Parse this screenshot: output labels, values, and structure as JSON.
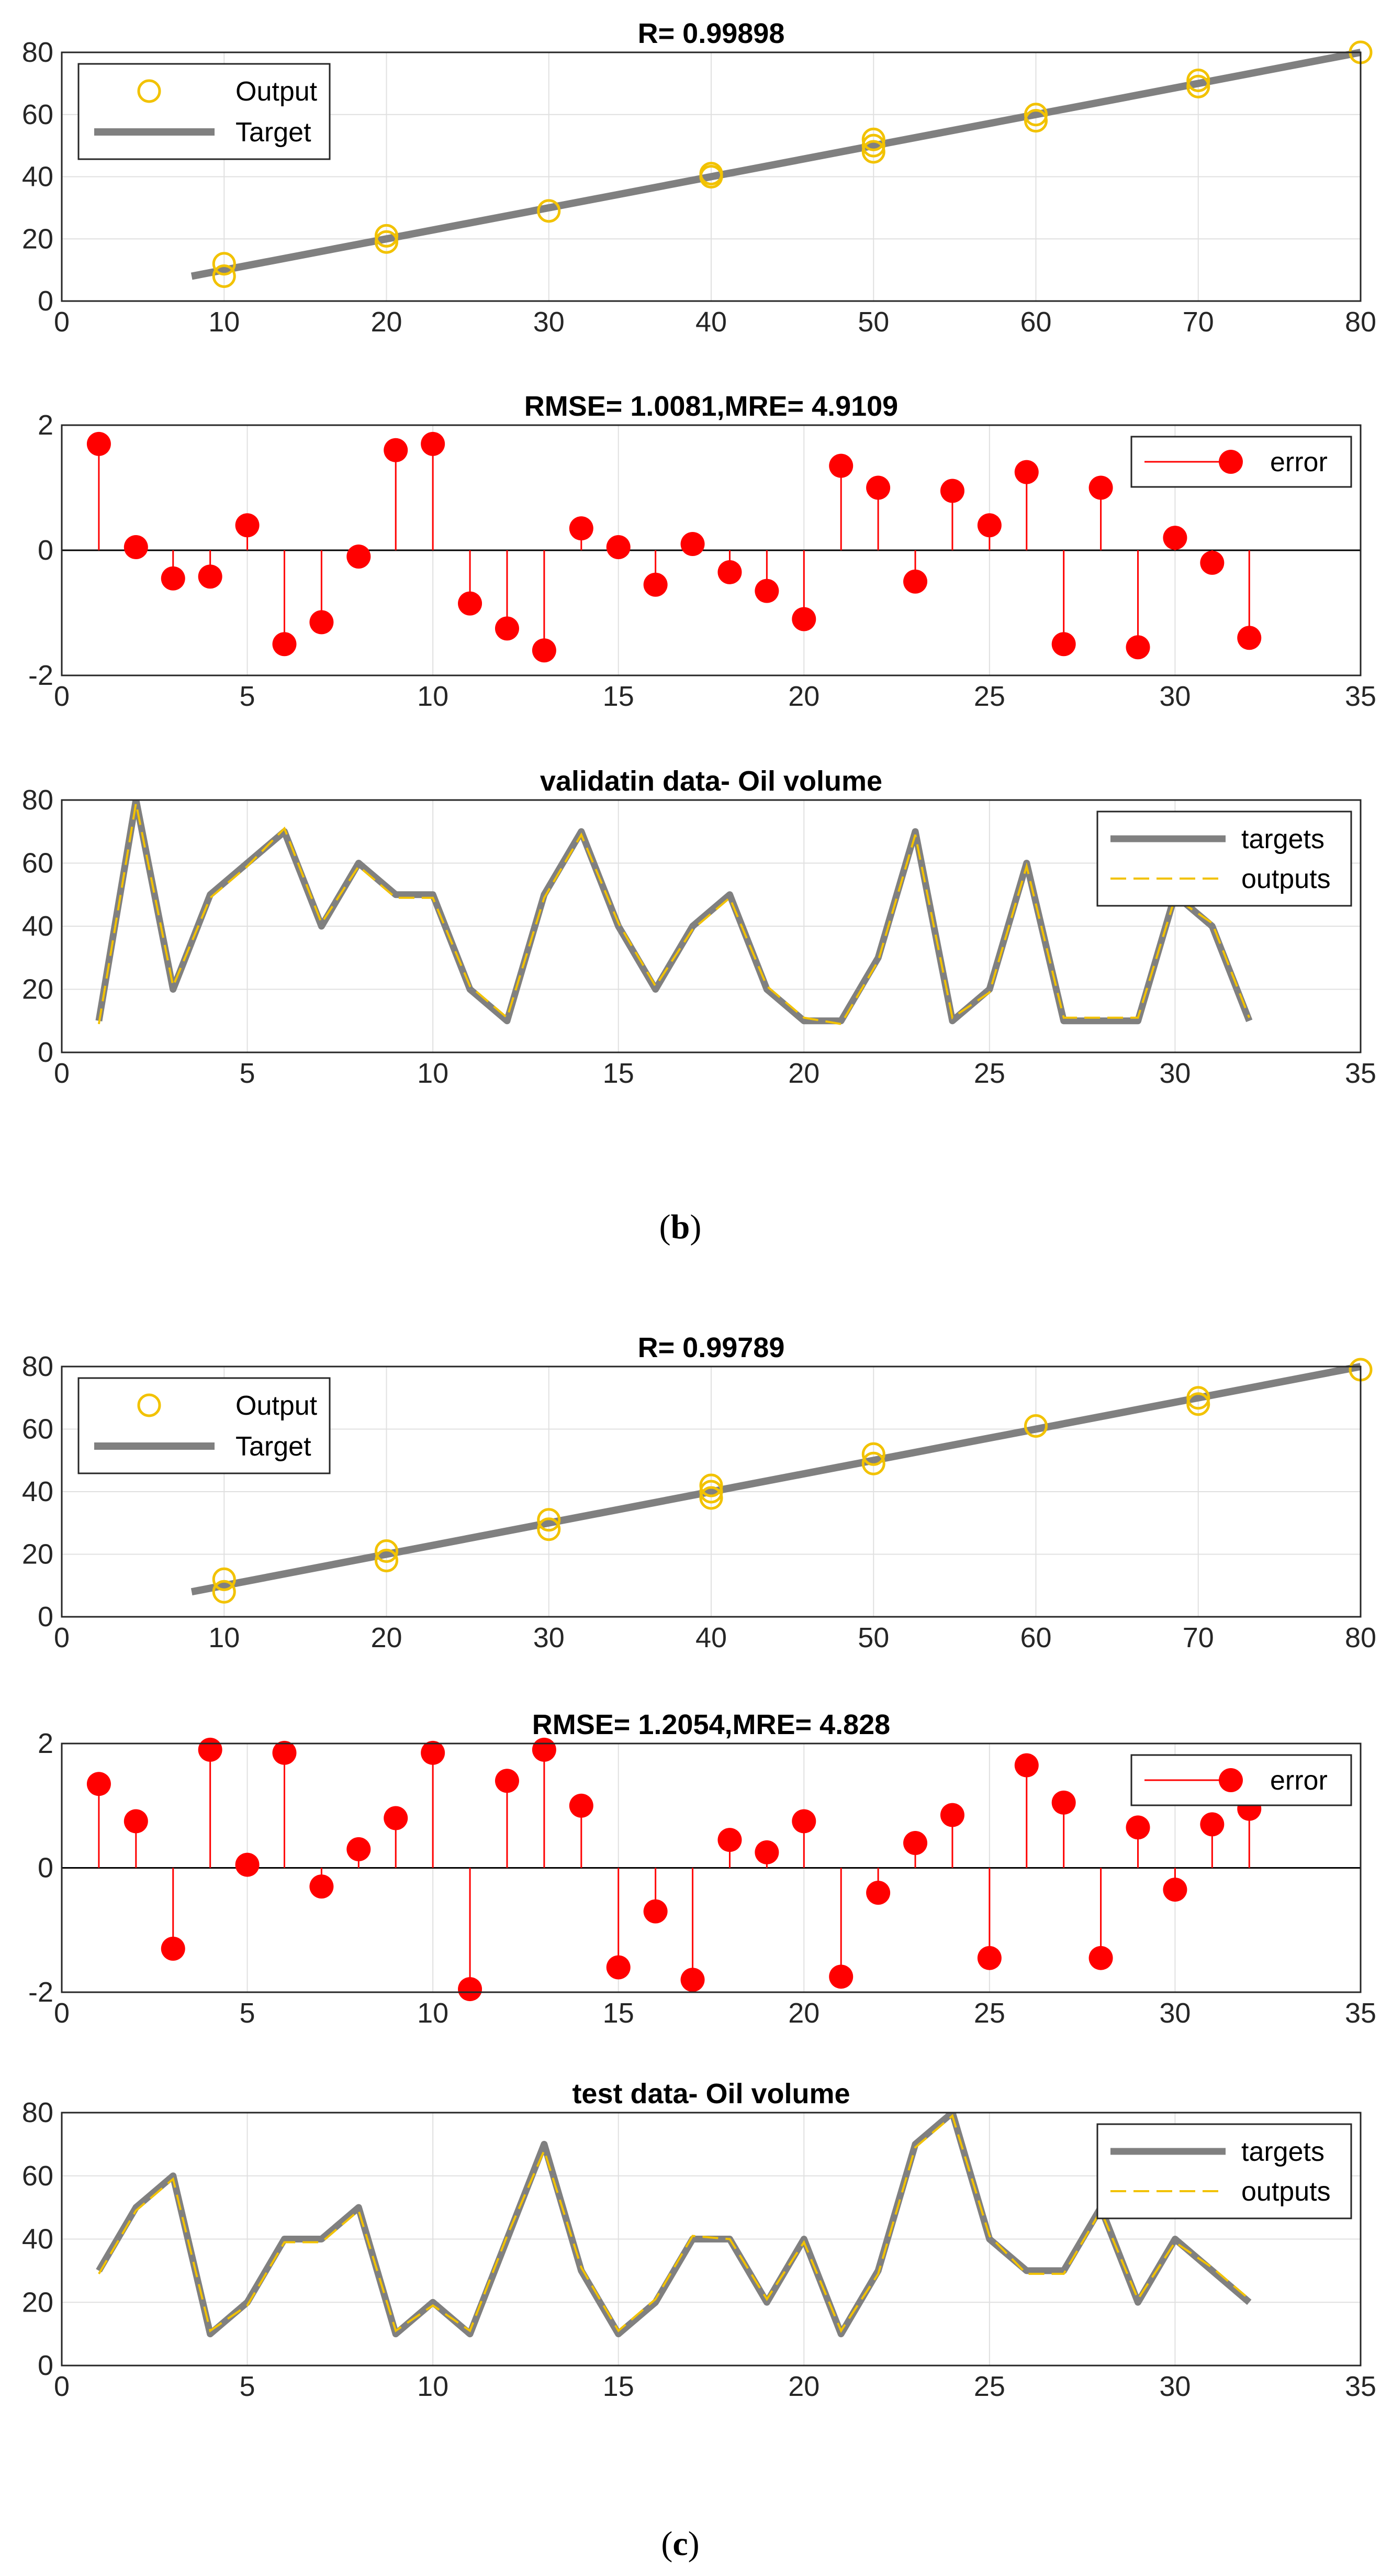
{
  "colors": {
    "target_line": "#808080",
    "output_marker": "#f2c200",
    "output_dash": "#f2c200",
    "error_stem": "#ff0000",
    "grid": "#e0e0e0",
    "axis": "#262626"
  },
  "captions": {
    "b": "b",
    "c": "c"
  },
  "chart_data": [
    {
      "id": "b_regression",
      "type": "scatter",
      "title": "R= 0.99898",
      "xlim": [
        0,
        80
      ],
      "ylim": [
        0,
        80
      ],
      "xticks": [
        0,
        10,
        20,
        30,
        40,
        50,
        60,
        70,
        80
      ],
      "yticks": [
        0,
        20,
        40,
        60,
        80
      ],
      "legend_position": "top-left",
      "legend": [
        "Output",
        "Target"
      ],
      "target_line": [
        [
          8,
          8
        ],
        [
          80,
          80
        ]
      ],
      "points": [
        [
          10,
          8
        ],
        [
          10,
          12
        ],
        [
          20,
          19
        ],
        [
          20,
          21
        ],
        [
          30,
          29
        ],
        [
          40,
          40
        ],
        [
          40,
          41
        ],
        [
          50,
          48
        ],
        [
          50,
          50
        ],
        [
          50,
          52
        ],
        [
          60,
          58
        ],
        [
          60,
          60
        ],
        [
          70,
          69
        ],
        [
          70,
          71
        ],
        [
          80,
          80
        ]
      ]
    },
    {
      "id": "b_error",
      "type": "stem",
      "title": "RMSE= 1.0081,MRE= 4.9109",
      "xlim": [
        0,
        35
      ],
      "ylim": [
        -2,
        2
      ],
      "xticks": [
        0,
        5,
        10,
        15,
        20,
        25,
        30,
        35
      ],
      "yticks": [
        -2,
        0,
        2
      ],
      "legend_position": "top-right",
      "legend": [
        "error"
      ],
      "x": [
        1,
        2,
        3,
        4,
        5,
        6,
        7,
        8,
        9,
        10,
        11,
        12,
        13,
        14,
        15,
        16,
        17,
        18,
        19,
        20,
        21,
        22,
        23,
        24,
        25,
        26,
        27,
        28,
        29,
        30,
        31,
        32
      ],
      "values": [
        1.7,
        0.05,
        -0.45,
        -0.42,
        0.4,
        -1.5,
        -1.15,
        -0.1,
        1.6,
        1.7,
        -0.85,
        -1.25,
        -1.6,
        0.35,
        0.05,
        -0.55,
        0.1,
        -0.35,
        -0.65,
        -1.1,
        1.35,
        1.0,
        -0.5,
        0.95,
        0.4,
        1.25,
        -1.5,
        1.0,
        -1.55,
        0.2,
        -0.2,
        -1.4
      ]
    },
    {
      "id": "b_series",
      "type": "line",
      "title": "validatin data- Oil volume",
      "xlim": [
        0,
        35
      ],
      "ylim": [
        0,
        80
      ],
      "xticks": [
        0,
        5,
        10,
        15,
        20,
        25,
        30,
        35
      ],
      "yticks": [
        0,
        20,
        40,
        60,
        80
      ],
      "legend_position": "top-right",
      "x": [
        1,
        2,
        3,
        4,
        5,
        6,
        7,
        8,
        9,
        10,
        11,
        12,
        13,
        14,
        15,
        16,
        17,
        18,
        19,
        20,
        21,
        22,
        23,
        24,
        25,
        26,
        27,
        28,
        29,
        30,
        31,
        32
      ],
      "series": [
        {
          "name": "targets",
          "values": [
            10,
            80,
            20,
            50,
            60,
            70,
            40,
            60,
            50,
            50,
            20,
            10,
            50,
            70,
            40,
            20,
            40,
            50,
            20,
            10,
            10,
            30,
            70,
            10,
            20,
            60,
            10,
            10,
            10,
            50,
            40,
            10
          ]
        },
        {
          "name": "outputs",
          "values": [
            9,
            79,
            21,
            49,
            59,
            71,
            41,
            59,
            49,
            49,
            21,
            11,
            49,
            69,
            41,
            21,
            39,
            49,
            21,
            11,
            9,
            29,
            69,
            11,
            19,
            59,
            11,
            11,
            11,
            49,
            41,
            11
          ]
        }
      ]
    },
    {
      "id": "c_regression",
      "type": "scatter",
      "title": "R= 0.99789",
      "xlim": [
        0,
        80
      ],
      "ylim": [
        0,
        80
      ],
      "xticks": [
        0,
        10,
        20,
        30,
        40,
        50,
        60,
        70,
        80
      ],
      "yticks": [
        0,
        20,
        40,
        60,
        80
      ],
      "legend_position": "top-left",
      "legend": [
        "Output",
        "Target"
      ],
      "target_line": [
        [
          8,
          8
        ],
        [
          80,
          80
        ]
      ],
      "points": [
        [
          10,
          8
        ],
        [
          10,
          12
        ],
        [
          20,
          18
        ],
        [
          20,
          21
        ],
        [
          30,
          28
        ],
        [
          30,
          31
        ],
        [
          40,
          38
        ],
        [
          40,
          40
        ],
        [
          40,
          42
        ],
        [
          50,
          49
        ],
        [
          50,
          52
        ],
        [
          60,
          61
        ],
        [
          70,
          68
        ],
        [
          70,
          70
        ],
        [
          80,
          79
        ]
      ]
    },
    {
      "id": "c_error",
      "type": "stem",
      "title": "RMSE= 1.2054,MRE= 4.828",
      "xlim": [
        0,
        35
      ],
      "ylim": [
        -2,
        2
      ],
      "xticks": [
        0,
        5,
        10,
        15,
        20,
        25,
        30,
        35
      ],
      "yticks": [
        -2,
        0,
        2
      ],
      "legend_position": "top-right",
      "legend": [
        "error"
      ],
      "x": [
        1,
        2,
        3,
        4,
        5,
        6,
        7,
        8,
        9,
        10,
        11,
        12,
        13,
        14,
        15,
        16,
        17,
        18,
        19,
        20,
        21,
        22,
        23,
        24,
        25,
        26,
        27,
        28,
        29,
        30,
        31,
        32
      ],
      "values": [
        1.35,
        0.75,
        -1.3,
        1.9,
        0.05,
        1.85,
        -0.3,
        0.3,
        0.8,
        1.85,
        -1.95,
        1.4,
        1.9,
        1.0,
        -1.6,
        -0.7,
        -1.8,
        0.45,
        0.25,
        0.75,
        -1.75,
        -0.4,
        0.4,
        0.85,
        -1.45,
        1.65,
        1.05,
        -1.45,
        0.65,
        -0.35,
        0.7,
        0.95
      ]
    },
    {
      "id": "c_series",
      "type": "line",
      "title": "test data- Oil volume",
      "xlim": [
        0,
        35
      ],
      "ylim": [
        0,
        80
      ],
      "xticks": [
        0,
        5,
        10,
        15,
        20,
        25,
        30,
        35
      ],
      "yticks": [
        0,
        20,
        40,
        60,
        80
      ],
      "legend_position": "top-right",
      "x": [
        1,
        2,
        3,
        4,
        5,
        6,
        7,
        8,
        9,
        10,
        11,
        12,
        13,
        14,
        15,
        16,
        17,
        18,
        19,
        20,
        21,
        22,
        23,
        24,
        25,
        26,
        27,
        28,
        29,
        30,
        31,
        32
      ],
      "series": [
        {
          "name": "targets",
          "values": [
            30,
            50,
            60,
            10,
            20,
            40,
            40,
            50,
            10,
            20,
            10,
            40,
            70,
            30,
            10,
            20,
            40,
            40,
            20,
            40,
            10,
            30,
            70,
            80,
            40,
            30,
            30,
            50,
            20,
            40,
            30,
            20
          ]
        },
        {
          "name": "outputs",
          "values": [
            29,
            49,
            59,
            11,
            19,
            39,
            39,
            49,
            11,
            19,
            11,
            41,
            68,
            31,
            11,
            21,
            41,
            40,
            21,
            39,
            11,
            29,
            69,
            79,
            41,
            29,
            29,
            49,
            21,
            39,
            31,
            21
          ]
        }
      ]
    }
  ]
}
